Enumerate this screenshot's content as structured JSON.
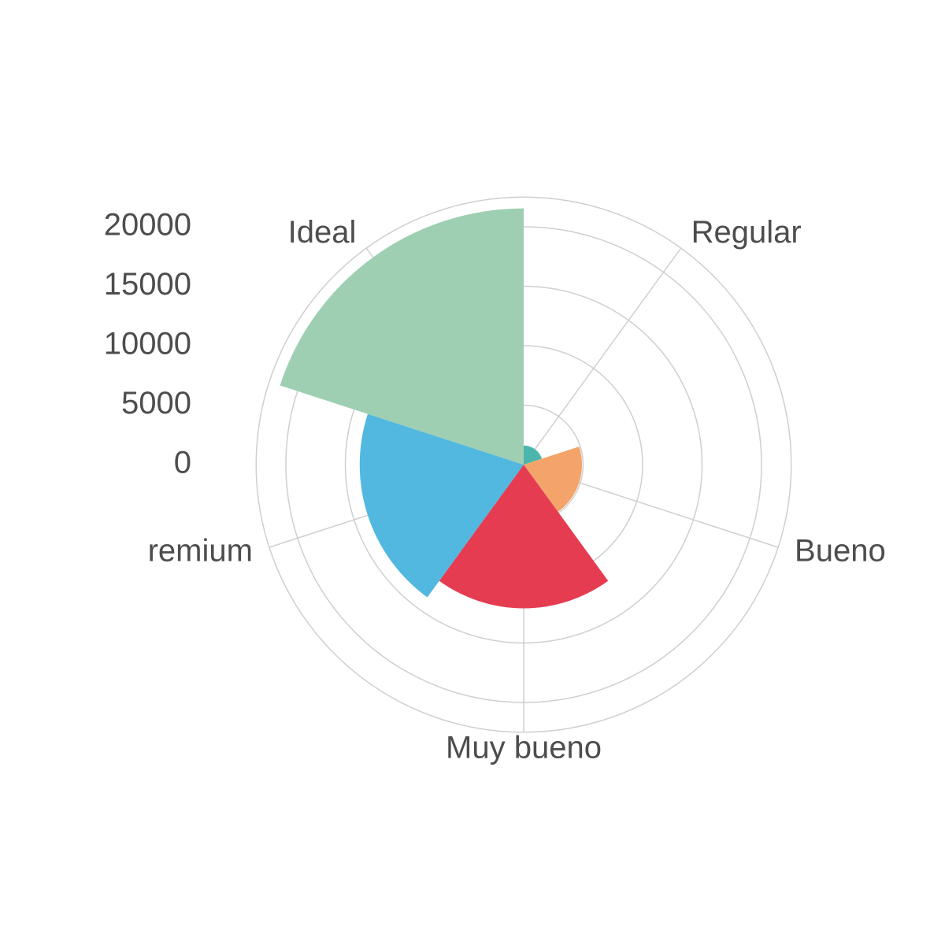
{
  "chart_data": {
    "type": "bar",
    "coord": "polar",
    "title": "",
    "xlabel": "",
    "ylabel": "",
    "grid": true,
    "ylim": [
      0,
      20000
    ],
    "yticks": [
      0,
      5000,
      10000,
      15000,
      20000
    ],
    "tick_labels": [
      "0",
      "5000",
      "10000",
      "15000",
      "20000"
    ],
    "categories": [
      "Regular",
      "Bueno",
      "Muy bueno",
      "remium",
      "Ideal"
    ],
    "values": [
      1610,
      4906,
      12082,
      13791,
      21551
    ],
    "colors": [
      "#4db6ac",
      "#f4a46a",
      "#e63c52",
      "#52b8df",
      "#9ecfb2"
    ]
  }
}
